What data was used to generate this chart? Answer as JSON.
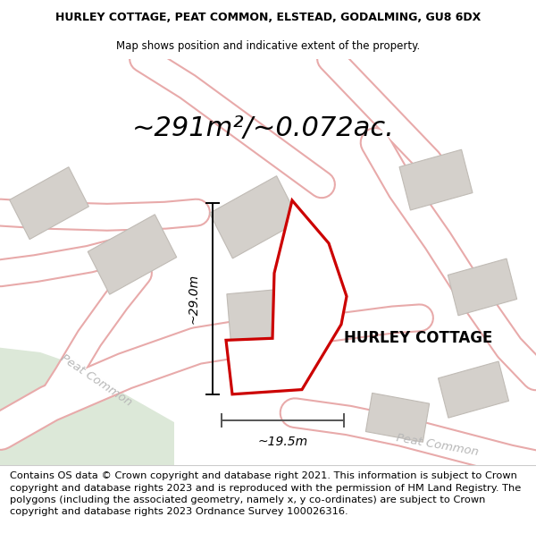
{
  "title_line1": "HURLEY COTTAGE, PEAT COMMON, ELSTEAD, GODALMING, GU8 6DX",
  "title_line2": "Map shows position and indicative extent of the property.",
  "area_text": "~291m²/~0.072ac.",
  "property_label": "HURLEY COTTAGE",
  "dim_vertical": "~29.0m",
  "dim_horizontal": "~19.5m",
  "road_label1": "Peat Common",
  "road_label2": "Peat Common",
  "footer_text": "Contains OS data © Crown copyright and database right 2021. This information is subject to Crown copyright and database rights 2023 and is reproduced with the permission of HM Land Registry. The polygons (including the associated geometry, namely x, y co-ordinates) are subject to Crown copyright and database rights 2023 Ordnance Survey 100026316.",
  "bg_map_color": "#f7f5f2",
  "bg_footer_color": "#ffffff",
  "road_outline_color": "#e8aaaa",
  "road_fill_color": "#ffffff",
  "building_color": "#d4d0cb",
  "building_edge_color": "#c0bbb5",
  "plot_fill_color": "#ffffff",
  "plot_stroke_color": "#cc0000",
  "road_text_color": "#b8b8b8",
  "green_area_color": "#dce8d8",
  "title_fontsize": 9,
  "area_fontsize": 22,
  "label_fontsize": 12,
  "footer_fontsize": 8.2,
  "dim_fontsize": 10
}
